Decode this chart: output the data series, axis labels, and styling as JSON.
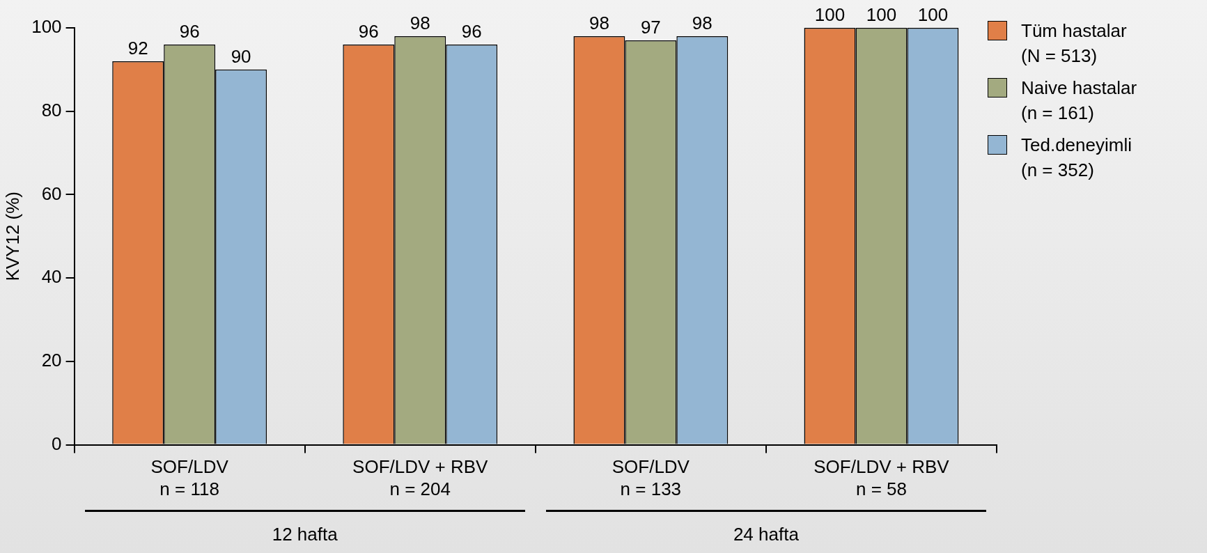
{
  "chart_data": {
    "type": "bar",
    "ylabel": "KVY12 (%)",
    "categories": [
      "SOF/LDV\nn = 118",
      "SOF/LDV + RBV\nn = 204",
      "SOF/LDV\nn = 133",
      "SOF/LDV + RBV\nn = 58"
    ],
    "series": [
      {
        "name": "Tüm hastalar\n(N = 513)",
        "color": "#e07f48",
        "values": [
          92,
          96,
          98,
          100
        ]
      },
      {
        "name": "Naive hastalar\n(n = 161)",
        "color": "#a3aa80",
        "values": [
          96,
          98,
          97,
          100
        ]
      },
      {
        "name": "Ted.deneyimli\n(n = 352)",
        "color": "#94b6d3",
        "values": [
          90,
          96,
          98,
          100
        ]
      }
    ],
    "ylim": [
      0,
      100
    ],
    "yticks": [
      0,
      20,
      40,
      60,
      80,
      100
    ],
    "data_labels": true,
    "grid": false,
    "legend": "top right",
    "annotations": [
      "12 hafta",
      "24 hafta"
    ]
  }
}
